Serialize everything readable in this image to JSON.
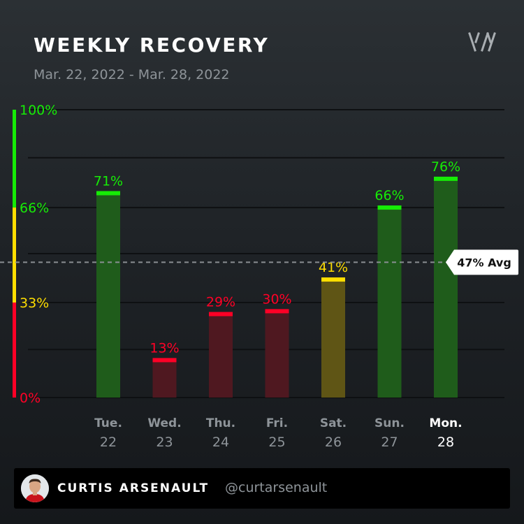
{
  "header": {
    "title": "WEEKLY RECOVERY",
    "subtitle": "Mar. 22, 2022 - Mar. 28, 2022"
  },
  "icons": {
    "logo": "whoop-logo-icon"
  },
  "colors": {
    "green": "#16ec06",
    "yellow": "#ffde00",
    "red": "#ff0026",
    "green_fill": "#1f5c1b",
    "yellow_fill": "#5f5515",
    "red_fill": "#4f1820",
    "grid": "#0e1012",
    "avg_line": "#8a8f93",
    "tick_text": "#8e9499",
    "active_tick_text": "#ffffff"
  },
  "chart_data": {
    "type": "bar",
    "title": "WEEKLY RECOVERY",
    "categories": [
      {
        "day": "Tue.",
        "date": "22"
      },
      {
        "day": "Wed.",
        "date": "23"
      },
      {
        "day": "Thu.",
        "date": "24"
      },
      {
        "day": "Fri.",
        "date": "25"
      },
      {
        "day": "Sat.",
        "date": "26"
      },
      {
        "day": "Sun.",
        "date": "27"
      },
      {
        "day": "Mon.",
        "date": "28"
      }
    ],
    "values": [
      71,
      13,
      29,
      30,
      41,
      66,
      76
    ],
    "value_labels": [
      "71%",
      "13%",
      "29%",
      "30%",
      "41%",
      "66%",
      "76%"
    ],
    "ylim": [
      0,
      100
    ],
    "y_ticks": [
      {
        "value": 100,
        "label": "100%"
      },
      {
        "value": 66,
        "label": "66%"
      },
      {
        "value": 33,
        "label": "33%"
      },
      {
        "value": 0,
        "label": "0%"
      }
    ],
    "zones": [
      {
        "from": 66,
        "to": 100,
        "color": "green"
      },
      {
        "from": 33,
        "to": 66,
        "color": "yellow"
      },
      {
        "from": 0,
        "to": 33,
        "color": "red"
      }
    ],
    "average": {
      "value": 47,
      "label": "47% Avg"
    },
    "highlighted_index": 6,
    "grid": true
  },
  "footer": {
    "name": "CURTIS ARSENAULT",
    "handle": "@curtarsenault"
  }
}
